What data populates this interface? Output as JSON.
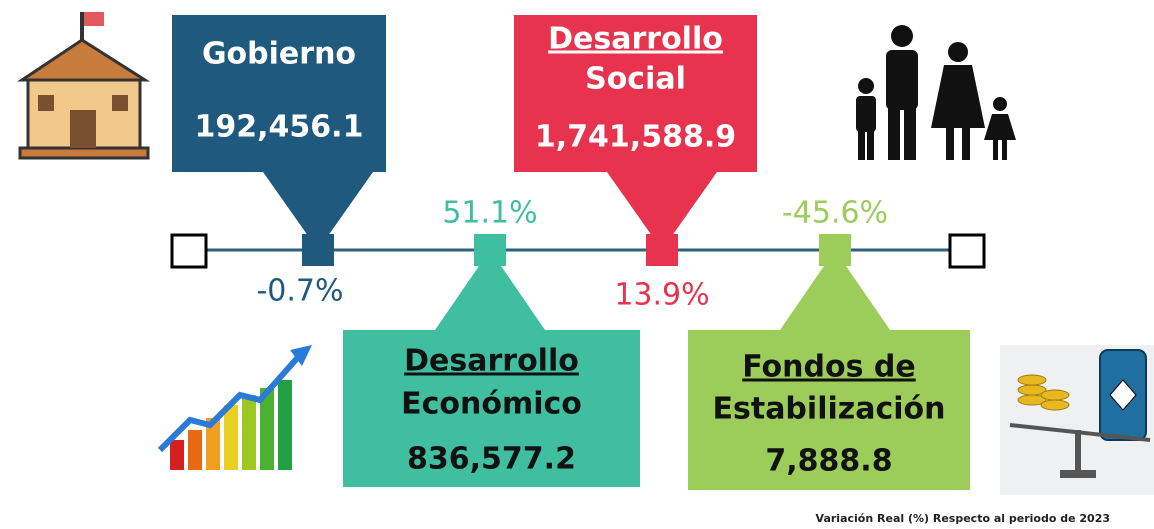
{
  "items": [
    {
      "title": [
        "Gobierno"
      ],
      "value": "192,456.1",
      "change": "-0.7%"
    },
    {
      "title": [
        "Desarrollo",
        "Social"
      ],
      "value": "1,741,588.9",
      "change": "13.9%"
    },
    {
      "title": [
        "Desarrollo",
        "Económico"
      ],
      "value": "836,577.2",
      "change": "51.1%"
    },
    {
      "title": [
        "Fondos de",
        "Estabilización"
      ],
      "value": "7,888.8",
      "change": "-45.6%"
    }
  ],
  "footnote": "Variación Real (%) Respecto al periodo de 2023"
}
